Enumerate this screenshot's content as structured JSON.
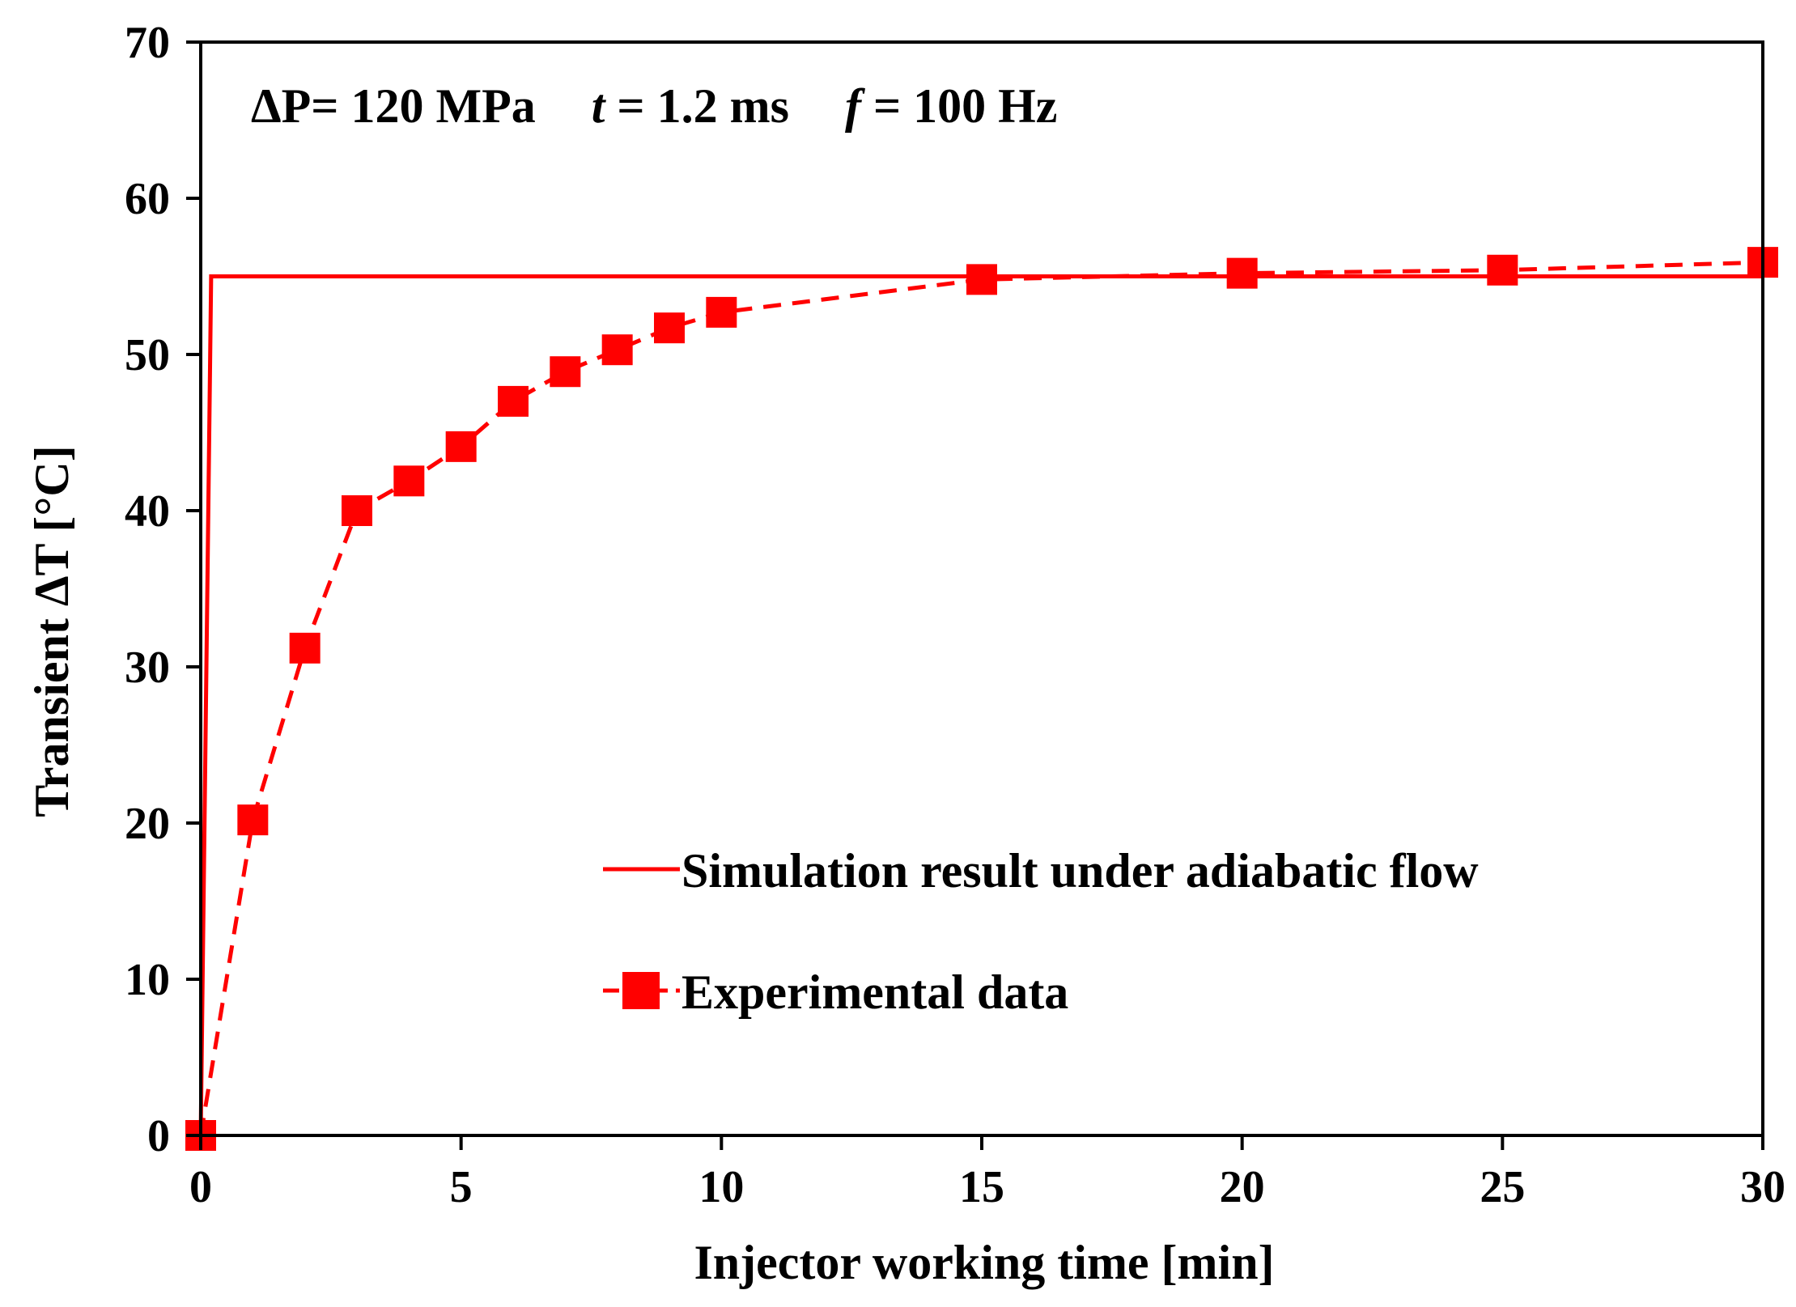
{
  "chart_data": {
    "type": "line",
    "title": "",
    "xlabel": "Injector working time [min]",
    "ylabel": "Transient ΔT [°C]",
    "xlim": [
      0,
      30
    ],
    "ylim": [
      0,
      70
    ],
    "xticks": [
      0,
      5,
      10,
      15,
      20,
      25,
      30
    ],
    "yticks": [
      0,
      10,
      20,
      30,
      40,
      50,
      60,
      70
    ],
    "xtick_labels": [
      "0",
      "5",
      "10",
      "15",
      "20",
      "25",
      "30"
    ],
    "ytick_labels": [
      "0",
      "10",
      "20",
      "30",
      "40",
      "50",
      "60",
      "70"
    ],
    "grid": false,
    "legend_position": "lower-right",
    "annotation": {
      "dp_label": "ΔP= 120 MPa",
      "t_symbol": "t",
      "t_value": "= 1.2 ms",
      "f_symbol": "f",
      "f_value": "= 100 Hz"
    },
    "series": [
      {
        "name": "Simulation result under adiabatic flow",
        "style": "solid",
        "marker": "none",
        "color": "#ff0000",
        "x": [
          0,
          0.2,
          30
        ],
        "y": [
          0,
          55,
          55
        ]
      },
      {
        "name": "Experimental data",
        "style": "dashed",
        "marker": "square",
        "color": "#ff0000",
        "x": [
          0,
          1,
          2,
          3,
          4,
          5,
          6,
          7,
          8,
          9,
          10,
          15,
          20,
          25,
          30
        ],
        "y": [
          0,
          20.2,
          31.2,
          40,
          41.9,
          44.1,
          47,
          48.9,
          50.3,
          51.7,
          52.7,
          54.8,
          55.2,
          55.4,
          55.9
        ]
      }
    ]
  }
}
